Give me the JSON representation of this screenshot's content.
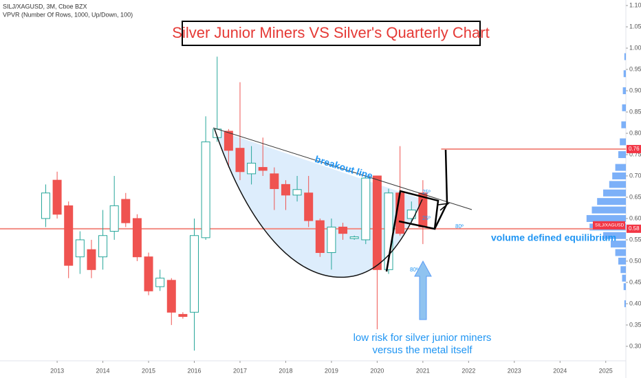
{
  "chart_data": {
    "type": "candlestick",
    "header": "SILJ/XAGUSD, 3M, Cboe BZX",
    "indicator": "VPVR (Number Of Rows, 1000, Up/Down, 100)",
    "title": "Silver Junior Miners VS Silver's Quarterly Chart",
    "up_color": "#26a69a",
    "down_color": "#ef5350",
    "x": [
      2012.75,
      2013.0,
      2013.25,
      2013.5,
      2013.75,
      2014.0,
      2014.25,
      2014.5,
      2014.75,
      2015.0,
      2015.25,
      2015.5,
      2015.75,
      2016.0,
      2016.25,
      2016.5,
      2016.75,
      2017.0,
      2017.25,
      2017.5,
      2017.75,
      2018.0,
      2018.25,
      2018.5,
      2018.75,
      2019.0,
      2019.25,
      2019.5,
      2019.75,
      2020.0,
      2020.25,
      2020.5,
      2020.75,
      2021.0
    ],
    "open": [
      0.6,
      0.69,
      0.63,
      0.51,
      0.527,
      0.51,
      0.57,
      0.645,
      0.6,
      0.51,
      0.44,
      0.455,
      0.375,
      0.38,
      0.555,
      0.79,
      0.805,
      0.765,
      0.705,
      0.72,
      0.705,
      0.68,
      0.655,
      0.66,
      0.595,
      0.52,
      0.58,
      0.553,
      0.55,
      0.7,
      0.48,
      0.66,
      0.6,
      0.66
    ],
    "high": [
      0.68,
      0.71,
      0.64,
      0.57,
      0.55,
      0.62,
      0.7,
      0.66,
      0.61,
      0.52,
      0.48,
      0.46,
      0.38,
      0.6,
      0.84,
      0.98,
      0.81,
      0.92,
      0.77,
      0.79,
      0.72,
      0.69,
      0.7,
      0.7,
      0.6,
      0.6,
      0.59,
      0.56,
      0.7,
      0.7,
      0.67,
      0.77,
      0.64,
      0.69
    ],
    "low": [
      0.58,
      0.6,
      0.46,
      0.47,
      0.46,
      0.48,
      0.55,
      0.58,
      0.5,
      0.42,
      0.43,
      0.35,
      0.365,
      0.29,
      0.55,
      0.78,
      0.72,
      0.69,
      0.68,
      0.7,
      0.62,
      0.62,
      0.64,
      0.58,
      0.51,
      0.48,
      0.55,
      0.55,
      0.54,
      0.34,
      0.47,
      0.56,
      0.59,
      0.54
    ],
    "close": [
      0.66,
      0.61,
      0.49,
      0.55,
      0.48,
      0.56,
      0.63,
      0.59,
      0.51,
      0.43,
      0.46,
      0.38,
      0.37,
      0.56,
      0.78,
      0.81,
      0.76,
      0.71,
      0.73,
      0.713,
      0.67,
      0.655,
      0.668,
      0.595,
      0.52,
      0.58,
      0.565,
      0.557,
      0.695,
      0.48,
      0.66,
      0.565,
      0.62,
      0.58
    ],
    "xlim": [
      2011.75,
      2025.44
    ],
    "xticks": [
      2013,
      2014,
      2015,
      2016,
      2017,
      2018,
      2019,
      2020,
      2021,
      2022,
      2023,
      2024,
      2025
    ],
    "ylim": [
      0.274,
      1.113
    ],
    "yticks": [
      {
        "value": 0.3,
        "label": "0.30"
      },
      {
        "value": 0.35,
        "label": "0.35"
      },
      {
        "value": 0.4,
        "label": "0.40"
      },
      {
        "value": 0.45,
        "label": "0.45"
      },
      {
        "value": 0.5,
        "label": "0.50"
      },
      {
        "value": 0.55,
        "label": "0.55"
      },
      {
        "value": 0.6,
        "label": "0.60"
      },
      {
        "value": 0.65,
        "label": "0.65"
      },
      {
        "value": 0.7,
        "label": "0.70"
      },
      {
        "value": 0.75,
        "label": "0.75"
      },
      {
        "value": 0.8,
        "label": "0.80"
      },
      {
        "value": 0.85,
        "label": "0.85"
      },
      {
        "value": 0.9,
        "label": "0.90"
      },
      {
        "value": 0.95,
        "label": "0.95"
      },
      {
        "value": 1.0,
        "label": "1.00"
      },
      {
        "value": 1.05,
        "label": "1.05"
      },
      {
        "value": 1.1,
        "label": "1.10"
      }
    ],
    "levels": [
      {
        "value": 0.763,
        "label": "0.76",
        "start": 2021.4
      },
      {
        "value": 0.576,
        "label": "0.58",
        "start": 2011.75
      }
    ],
    "level_color": "#f28b82",
    "symbol_label": "SILJ/XAGUSD",
    "volume_profile": {
      "color": "#5b9cf6",
      "prices": [
        0.98,
        0.94,
        0.9,
        0.86,
        0.82,
        0.78,
        0.75,
        0.72,
        0.7,
        0.68,
        0.66,
        0.64,
        0.62,
        0.6,
        0.58,
        0.56,
        0.54,
        0.52,
        0.5,
        0.48,
        0.46,
        0.44,
        0.4
      ],
      "volumes": [
        2,
        3,
        4,
        5,
        6,
        8,
        10,
        14,
        18,
        22,
        30,
        38,
        45,
        52,
        48,
        30,
        20,
        14,
        10,
        7,
        5,
        3,
        2
      ]
    },
    "annotations": {
      "breakout": "breakout line",
      "equilibrium": "volume defined equilibrium",
      "risk1": "low risk for silver junior miners",
      "risk2": "versus the metal itself",
      "angle1": "25º",
      "angle2": "25º",
      "angle3": "80º",
      "angle4": "80º"
    }
  }
}
